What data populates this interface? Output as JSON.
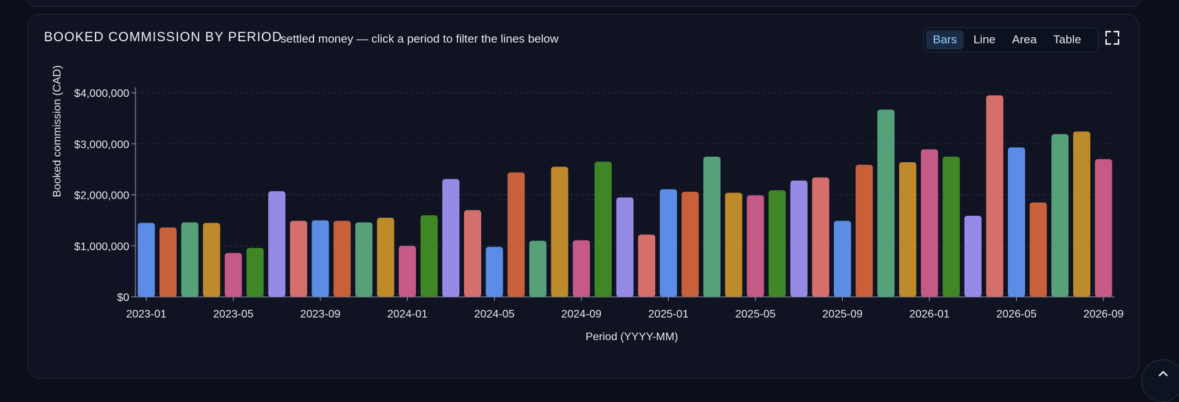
{
  "header": {
    "title": "BOOKED COMMISSION BY PERIOD",
    "subtitle": "settled money — click a period to filter the lines below"
  },
  "view_toggle": {
    "options": [
      "Bars",
      "Line",
      "Area",
      "Table"
    ],
    "active": "Bars"
  },
  "icons": {
    "fullscreen": "fullscreen-icon",
    "scroll_top": "chevron-up-icon"
  },
  "colors": {
    "background": "#0b0f1a",
    "card": "#0f1322",
    "accent": "#8fd3ff",
    "palette": [
      "#5b8de6",
      "#c8603a",
      "#56a07a",
      "#bd8a2c",
      "#c65a86",
      "#3f8626",
      "#958ae6",
      "#d46f6c"
    ]
  },
  "chart_data": {
    "type": "bar",
    "title": "",
    "xlabel": "Period (YYYY-MM)",
    "ylabel": "Booked commission (CAD)",
    "ylim": [
      0,
      4000000
    ],
    "yticks": [
      "$0",
      "$1,000,000",
      "$2,000,000",
      "$3,000,000",
      "$4,000,000"
    ],
    "grid": true,
    "legend": "none",
    "xtick_labels": [
      "2023-01",
      "2023-05",
      "2023-09",
      "2024-01",
      "2024-05",
      "2024-09",
      "2025-01",
      "2025-05",
      "2025-09",
      "2026-01",
      "2026-05",
      "2026-09"
    ],
    "categories": [
      "2023-01",
      "2023-02",
      "2023-03",
      "2023-04",
      "2023-05",
      "2023-06",
      "2023-07",
      "2023-08",
      "2023-09",
      "2023-10",
      "2023-11",
      "2023-12",
      "2024-01",
      "2024-02",
      "2024-03",
      "2024-04",
      "2024-05",
      "2024-06",
      "2024-07",
      "2024-08",
      "2024-09",
      "2024-10",
      "2024-11",
      "2024-12",
      "2025-01",
      "2025-02",
      "2025-03",
      "2025-04",
      "2025-05",
      "2025-06",
      "2025-07",
      "2025-08",
      "2025-09",
      "2025-10",
      "2025-11",
      "2025-12",
      "2026-01",
      "2026-02",
      "2026-03",
      "2026-04",
      "2026-05",
      "2026-06",
      "2026-07",
      "2026-08",
      "2026-09"
    ],
    "values": [
      1450000,
      1360000,
      1460000,
      1450000,
      860000,
      960000,
      2070000,
      1490000,
      1500000,
      1490000,
      1460000,
      1550000,
      1000000,
      1600000,
      2310000,
      1700000,
      980000,
      2440000,
      1100000,
      2550000,
      1110000,
      2650000,
      1950000,
      1220000,
      2110000,
      2060000,
      2750000,
      2040000,
      1990000,
      2090000,
      2280000,
      2340000,
      1490000,
      2590000,
      3670000,
      2640000,
      2890000,
      2750000,
      1590000,
      3950000,
      2930000,
      1850000,
      3190000,
      3240000,
      2700000
    ]
  }
}
